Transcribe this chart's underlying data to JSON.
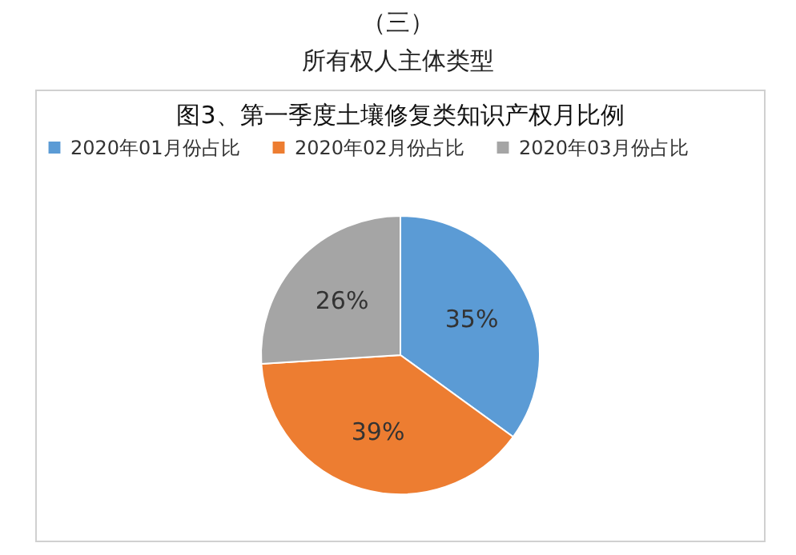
{
  "chart_data": {
    "type": "pie",
    "title": "图3、第一季度土壤修复类知识产权月比例",
    "annotations": [
      "（三）",
      "所有权人主体类型"
    ],
    "categories": [
      "2020年01月份占比",
      "2020年02月份占比",
      "2020年03月份占比"
    ],
    "values": [
      35,
      39,
      26
    ],
    "value_labels": [
      "35%",
      "39%",
      "26%"
    ],
    "colors": [
      "#5b9bd5",
      "#ed7d31",
      "#a5a5a5"
    ],
    "legend": "top"
  }
}
